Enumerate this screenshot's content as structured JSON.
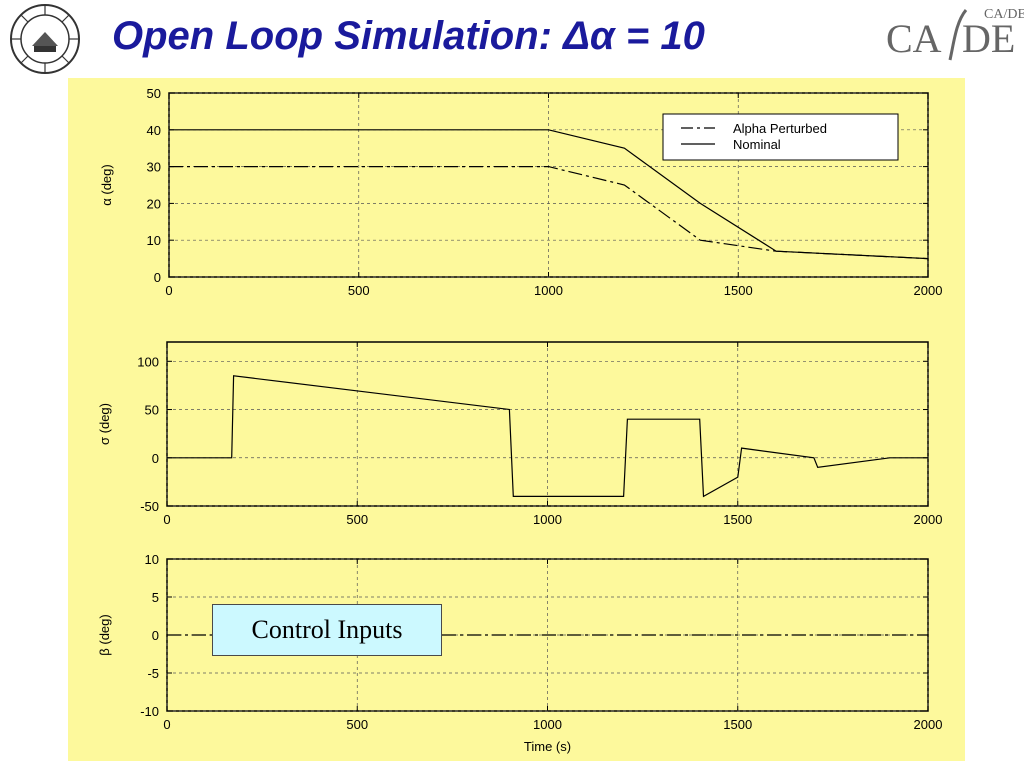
{
  "slide": {
    "title": "Open Loop Simulation: Δα = 10",
    "logo_left_text": "INDIAN INSTITUTE OF TECHNOLOGY BOMBAY",
    "logo_right_text": "CA/DE",
    "logo_right_small": "CA/DE"
  },
  "annotation": "Control Inputs",
  "colors": {
    "panel": "#fdf99c",
    "title": "#1a1a9c",
    "annotation_bg": "#ccf9ff"
  },
  "chart_data": [
    {
      "type": "line",
      "ylabel": "α (deg)",
      "xlabel": "",
      "xlim": [
        0,
        2000
      ],
      "ylim": [
        0,
        50
      ],
      "xticks": [
        0,
        500,
        1000,
        1500,
        2000
      ],
      "yticks": [
        0,
        10,
        20,
        30,
        40,
        50
      ],
      "grid": true,
      "legend": "top-right",
      "series": [
        {
          "name": "Alpha Perturbed",
          "style": "dashdot",
          "x": [
            0,
            1000,
            1200,
            1400,
            1600,
            2000
          ],
          "y": [
            30,
            30,
            25,
            10,
            7,
            5
          ]
        },
        {
          "name": "Nominal",
          "style": "solid",
          "x": [
            0,
            1000,
            1200,
            1400,
            1600,
            2000
          ],
          "y": [
            40,
            40,
            35,
            20,
            7,
            5
          ]
        }
      ]
    },
    {
      "type": "line",
      "ylabel": "σ (deg)",
      "xlabel": "",
      "xlim": [
        0,
        2000
      ],
      "ylim": [
        -50,
        120
      ],
      "xticks": [
        0,
        500,
        1000,
        1500,
        2000
      ],
      "yticks": [
        -50,
        0,
        50,
        100
      ],
      "grid": true,
      "series": [
        {
          "style": "solid",
          "x": [
            0,
            170,
            175,
            900,
            910,
            1200,
            1210,
            1400,
            1410,
            1500,
            1510,
            1700,
            1710,
            1900,
            2000
          ],
          "y": [
            0,
            0,
            85,
            50,
            -40,
            -40,
            40,
            40,
            -40,
            -20,
            10,
            0,
            -10,
            0,
            0
          ]
        }
      ]
    },
    {
      "type": "line",
      "ylabel": "β (deg)",
      "xlabel": "Time (s)",
      "xlim": [
        0,
        2000
      ],
      "ylim": [
        -10,
        10
      ],
      "xticks": [
        0,
        500,
        1000,
        1500,
        2000
      ],
      "yticks": [
        -10,
        -5,
        0,
        5,
        10
      ],
      "grid": true,
      "series": [
        {
          "style": "dashdot",
          "x": [
            0,
            2000
          ],
          "y": [
            0,
            0
          ]
        }
      ]
    }
  ]
}
